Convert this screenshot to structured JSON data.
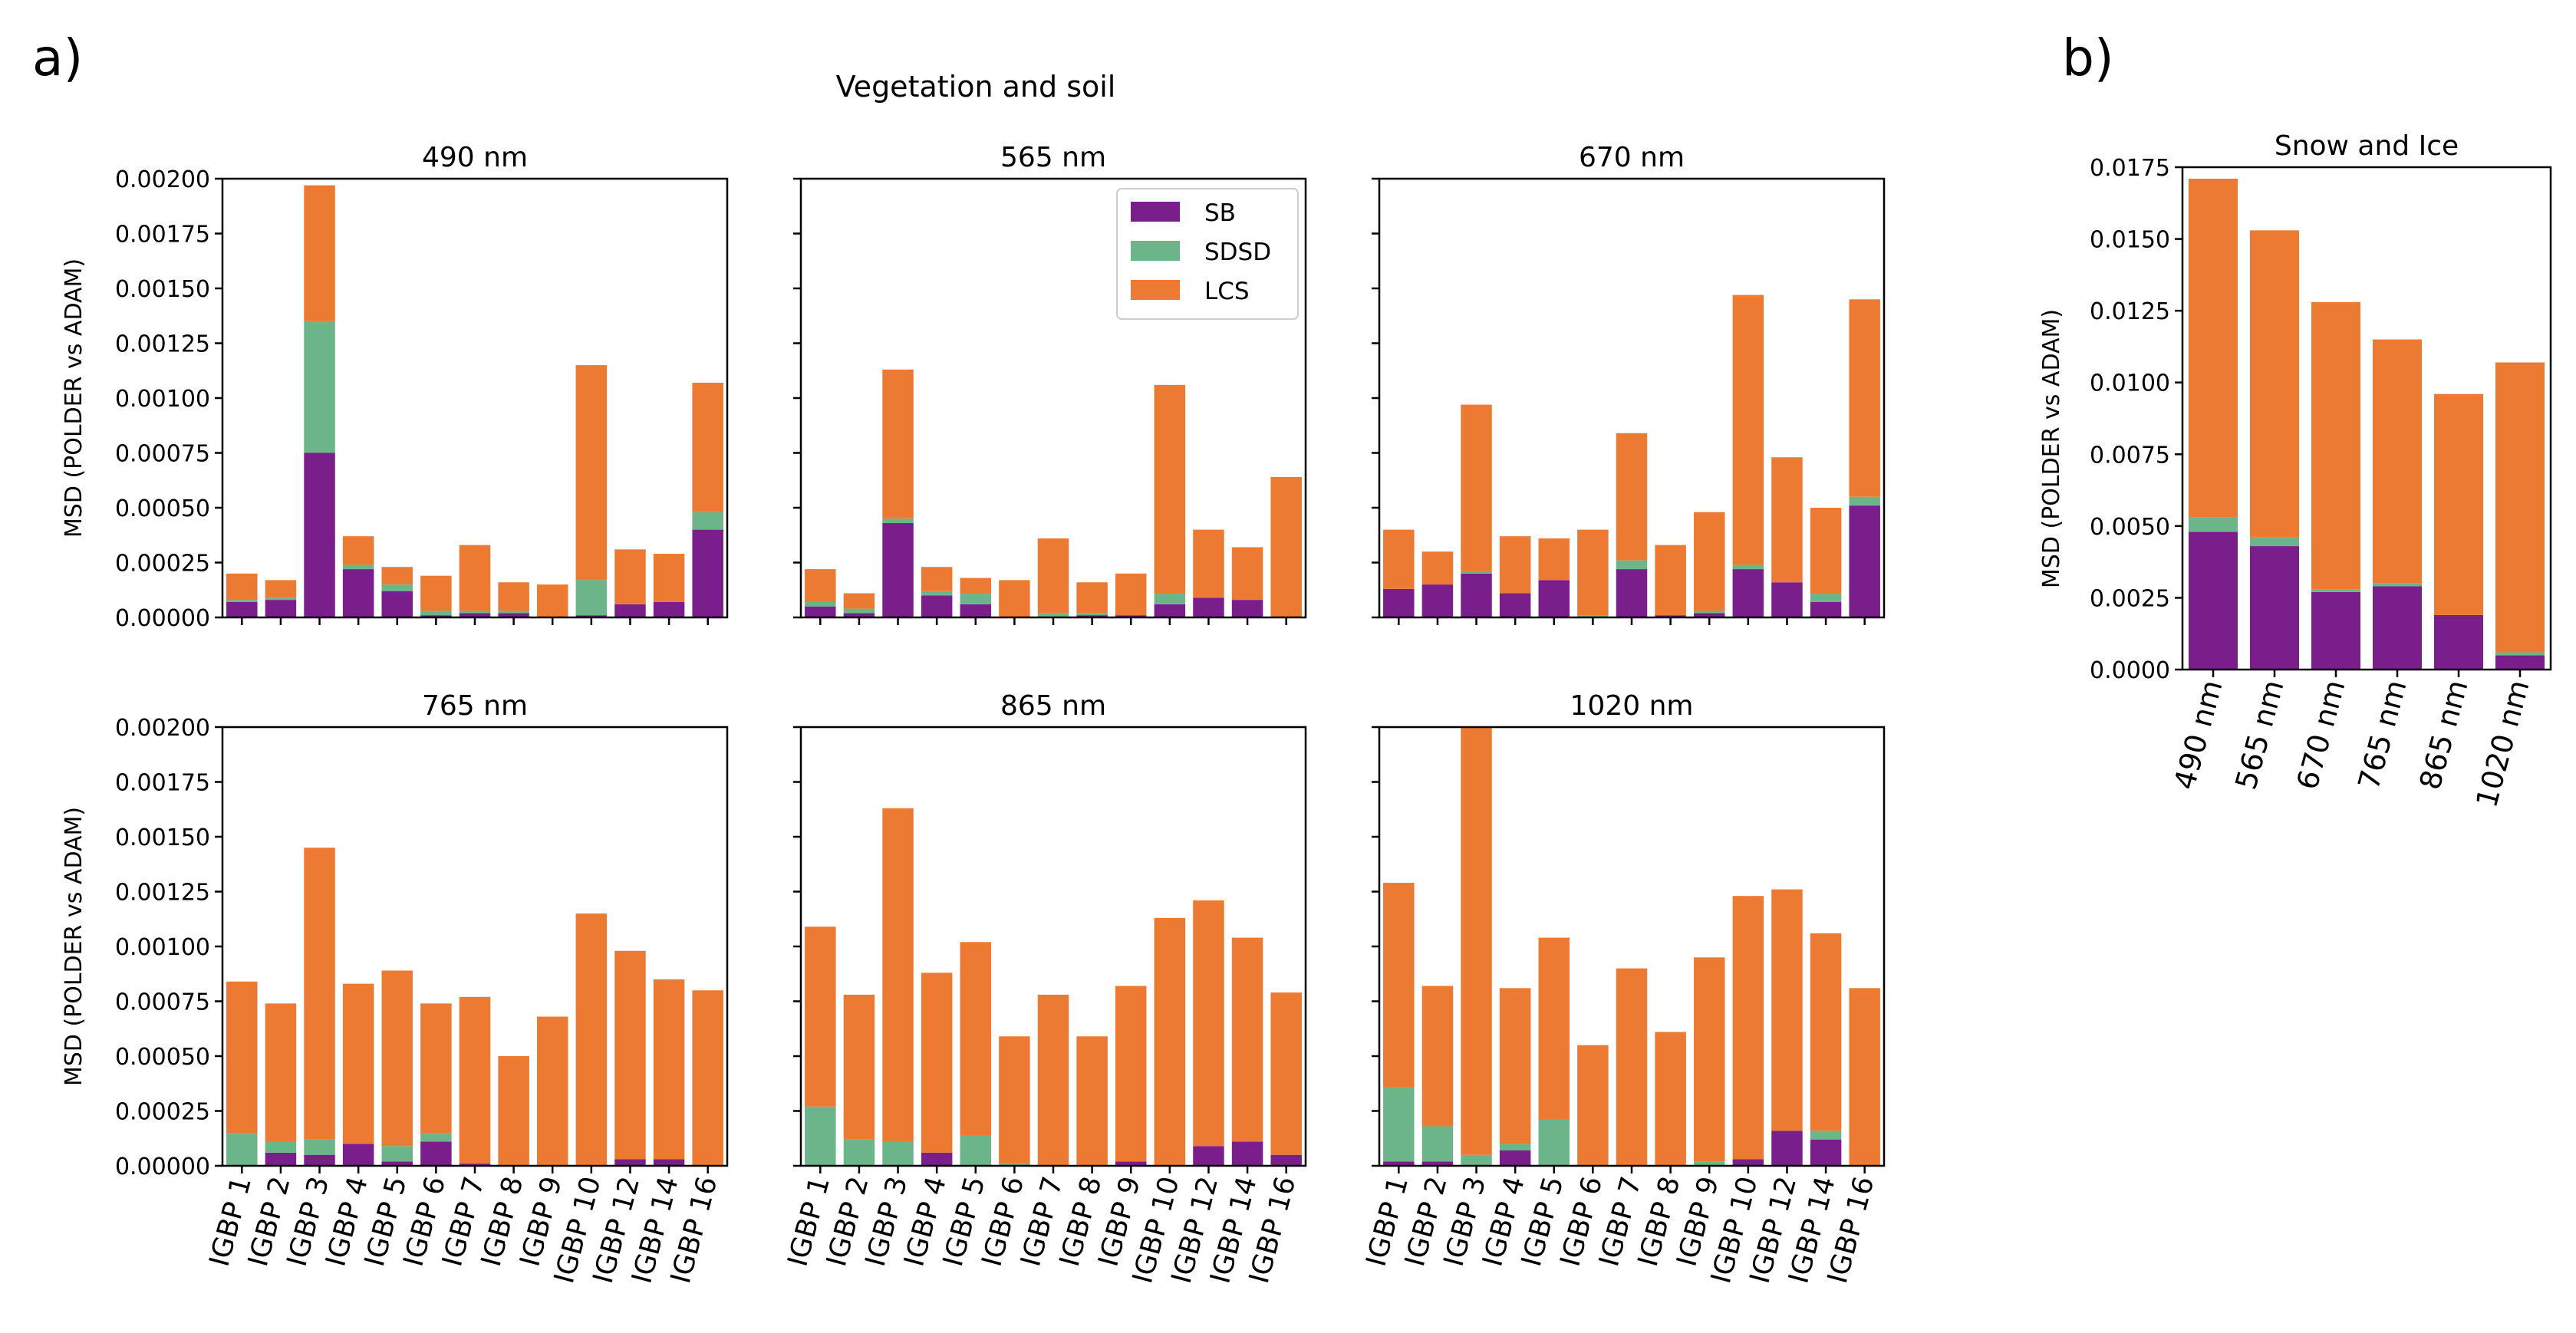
{
  "figure": {
    "panel_a_label": "a)",
    "panel_b_label": "b)",
    "panel_a_title": "Vegetation and soil",
    "ylabel": "MSD (POLDER vs ADAM)"
  },
  "colors": {
    "SB": "#7a1e8c",
    "SDSD": "#6cb58b",
    "LCS": "#ec7a33"
  },
  "legend": [
    "SB",
    "SDSD",
    "LCS"
  ],
  "chart_data": [
    {
      "type": "bar",
      "title": "490 nm",
      "xlabel": "",
      "ylabel": "MSD (POLDER vs ADAM)",
      "ylim": [
        0,
        0.002
      ],
      "yticks": [
        "0.00000",
        "0.00025",
        "0.00050",
        "0.00075",
        "0.00100",
        "0.00125",
        "0.00150",
        "0.00175",
        "0.00200"
      ],
      "stacked": true,
      "categories": [
        "IGBP 1",
        "IGBP 2",
        "IGBP 3",
        "IGBP 4",
        "IGBP 5",
        "IGBP 6",
        "IGBP 7",
        "IGBP 8",
        "IGBP 9",
        "IGBP 10",
        "IGBP 12",
        "IGBP 14",
        "IGBP 16"
      ],
      "series": [
        {
          "name": "SB",
          "values": [
            7e-05,
            8e-05,
            0.00075,
            0.00022,
            0.00012,
            1e-05,
            2e-05,
            2e-05,
            0.0,
            1e-05,
            6e-05,
            7e-05,
            0.0004
          ]
        },
        {
          "name": "SDSD",
          "values": [
            1e-05,
            1e-05,
            0.0006,
            2e-05,
            3e-05,
            2e-05,
            1e-05,
            1e-05,
            0.0,
            0.00016,
            0.0,
            0.0,
            8e-05
          ]
        },
        {
          "name": "LCS",
          "values": [
            0.00012,
            8e-05,
            0.00062,
            0.00013,
            8e-05,
            0.00016,
            0.0003,
            0.00013,
            0.00015,
            0.00098,
            0.00025,
            0.00022,
            0.00059
          ]
        }
      ]
    },
    {
      "type": "bar",
      "title": "565 nm",
      "ylim": [
        0,
        0.002
      ],
      "stacked": true,
      "categories": [
        "IGBP 1",
        "IGBP 2",
        "IGBP 3",
        "IGBP 4",
        "IGBP 5",
        "IGBP 6",
        "IGBP 7",
        "IGBP 8",
        "IGBP 9",
        "IGBP 10",
        "IGBP 12",
        "IGBP 14",
        "IGBP 16"
      ],
      "series": [
        {
          "name": "SB",
          "values": [
            5e-05,
            2e-05,
            0.00043,
            0.0001,
            6e-05,
            0.0,
            0.0,
            1e-05,
            1e-05,
            6e-05,
            9e-05,
            8e-05,
            0.0
          ]
        },
        {
          "name": "SDSD",
          "values": [
            2e-05,
            2e-05,
            2e-05,
            2e-05,
            5e-05,
            0.0,
            2e-05,
            1e-05,
            0.0,
            5e-05,
            0.0,
            0.0,
            0.0
          ]
        },
        {
          "name": "LCS",
          "values": [
            0.00015,
            7e-05,
            0.00068,
            0.00011,
            7e-05,
            0.00017,
            0.00034,
            0.00014,
            0.00019,
            0.00095,
            0.00031,
            0.00024,
            0.00064
          ]
        }
      ]
    },
    {
      "type": "bar",
      "title": "670 nm",
      "ylim": [
        0,
        0.002
      ],
      "stacked": true,
      "categories": [
        "IGBP 1",
        "IGBP 2",
        "IGBP 3",
        "IGBP 4",
        "IGBP 5",
        "IGBP 6",
        "IGBP 7",
        "IGBP 8",
        "IGBP 9",
        "IGBP 10",
        "IGBP 12",
        "IGBP 14",
        "IGBP 16"
      ],
      "series": [
        {
          "name": "SB",
          "values": [
            0.00013,
            0.00015,
            0.0002,
            0.00011,
            0.00017,
            0.0,
            0.00022,
            1e-05,
            2e-05,
            0.00022,
            0.00016,
            7e-05,
            0.00051
          ]
        },
        {
          "name": "SDSD",
          "values": [
            0.0,
            0.0,
            1e-05,
            0.0,
            0.0,
            1e-05,
            4e-05,
            0.0,
            1e-05,
            2e-05,
            0.0,
            4e-05,
            4e-05
          ]
        },
        {
          "name": "LCS",
          "values": [
            0.00027,
            0.00015,
            0.00076,
            0.00026,
            0.00019,
            0.00039,
            0.00058,
            0.00032,
            0.00045,
            0.00123,
            0.00057,
            0.00039,
            0.0009
          ]
        }
      ]
    },
    {
      "type": "bar",
      "title": "765 nm",
      "ylim": [
        0,
        0.002
      ],
      "stacked": true,
      "categories": [
        "IGBP 1",
        "IGBP 2",
        "IGBP 3",
        "IGBP 4",
        "IGBP 5",
        "IGBP 6",
        "IGBP 7",
        "IGBP 8",
        "IGBP 9",
        "IGBP 10",
        "IGBP 12",
        "IGBP 14",
        "IGBP 16"
      ],
      "series": [
        {
          "name": "SB",
          "values": [
            0.0,
            6e-05,
            5e-05,
            0.0001,
            2e-05,
            0.00011,
            1e-05,
            0.0,
            0.0,
            0.0,
            3e-05,
            3e-05,
            0.0
          ]
        },
        {
          "name": "SDSD",
          "values": [
            0.00015,
            5e-05,
            7e-05,
            0.0,
            7e-05,
            4e-05,
            0.0,
            0.0,
            0.0,
            0.0,
            0.0,
            0.0,
            0.0
          ]
        },
        {
          "name": "LCS",
          "values": [
            0.00069,
            0.00063,
            0.00133,
            0.00073,
            0.0008,
            0.00059,
            0.00076,
            0.0005,
            0.00068,
            0.00115,
            0.00095,
            0.00082,
            0.0008
          ]
        }
      ]
    },
    {
      "type": "bar",
      "title": "865 nm",
      "ylim": [
        0,
        0.002
      ],
      "stacked": true,
      "categories": [
        "IGBP 1",
        "IGBP 2",
        "IGBP 3",
        "IGBP 4",
        "IGBP 5",
        "IGBP 6",
        "IGBP 7",
        "IGBP 8",
        "IGBP 9",
        "IGBP 10",
        "IGBP 12",
        "IGBP 14",
        "IGBP 16"
      ],
      "series": [
        {
          "name": "SB",
          "values": [
            0.0,
            0.0,
            0.0,
            6e-05,
            0.0,
            0.0,
            0.0,
            0.0,
            2e-05,
            0.0,
            9e-05,
            0.00011,
            5e-05
          ]
        },
        {
          "name": "SDSD",
          "values": [
            0.00027,
            0.00012,
            0.00011,
            0.0,
            0.00014,
            1e-05,
            0.0,
            0.0,
            0.0,
            0.0,
            0.0,
            0.0,
            0.0
          ]
        },
        {
          "name": "LCS",
          "values": [
            0.00082,
            0.00066,
            0.00152,
            0.00082,
            0.00088,
            0.00058,
            0.00078,
            0.00059,
            0.0008,
            0.00113,
            0.00112,
            0.00093,
            0.00074
          ]
        }
      ]
    },
    {
      "type": "bar",
      "title": "1020 nm",
      "ylim": [
        0,
        0.002
      ],
      "stacked": true,
      "categories": [
        "IGBP 1",
        "IGBP 2",
        "IGBP 3",
        "IGBP 4",
        "IGBP 5",
        "IGBP 6",
        "IGBP 7",
        "IGBP 8",
        "IGBP 9",
        "IGBP 10",
        "IGBP 12",
        "IGBP 14",
        "IGBP 16"
      ],
      "series": [
        {
          "name": "SB",
          "values": [
            2e-05,
            2e-05,
            0.0,
            7e-05,
            0.0,
            0.0,
            0.0,
            0.0,
            0.0,
            3e-05,
            0.00016,
            0.00012,
            0.0
          ]
        },
        {
          "name": "SDSD",
          "values": [
            0.00034,
            0.00016,
            5e-05,
            3e-05,
            0.00021,
            0.0,
            0.0,
            0.0,
            2e-05,
            0.0,
            0.0,
            4e-05,
            0.0
          ]
        },
        {
          "name": "LCS",
          "values": [
            0.00093,
            0.00064,
            0.00195,
            0.00071,
            0.00083,
            0.00055,
            0.0009,
            0.00061,
            0.00093,
            0.0012,
            0.0011,
            0.0009,
            0.00081
          ]
        }
      ]
    },
    {
      "type": "bar",
      "title": "Snow and Ice",
      "ylabel": "MSD (POLDER vs ADAM)",
      "ylim": [
        0,
        0.0175
      ],
      "yticks": [
        "0.0000",
        "0.0025",
        "0.0050",
        "0.0075",
        "0.0100",
        "0.0125",
        "0.0150",
        "0.0175"
      ],
      "stacked": true,
      "categories": [
        "490 nm",
        "565 nm",
        "670 nm",
        "765 nm",
        "865 nm",
        "1020 nm"
      ],
      "series": [
        {
          "name": "SB",
          "values": [
            0.0048,
            0.0043,
            0.0027,
            0.0029,
            0.0019,
            0.0005
          ]
        },
        {
          "name": "SDSD",
          "values": [
            0.0005,
            0.0003,
            0.0001,
            0.0001,
            0.0,
            0.0001
          ]
        },
        {
          "name": "LCS",
          "values": [
            0.0118,
            0.0107,
            0.01,
            0.0085,
            0.0077,
            0.0101
          ]
        }
      ]
    }
  ]
}
